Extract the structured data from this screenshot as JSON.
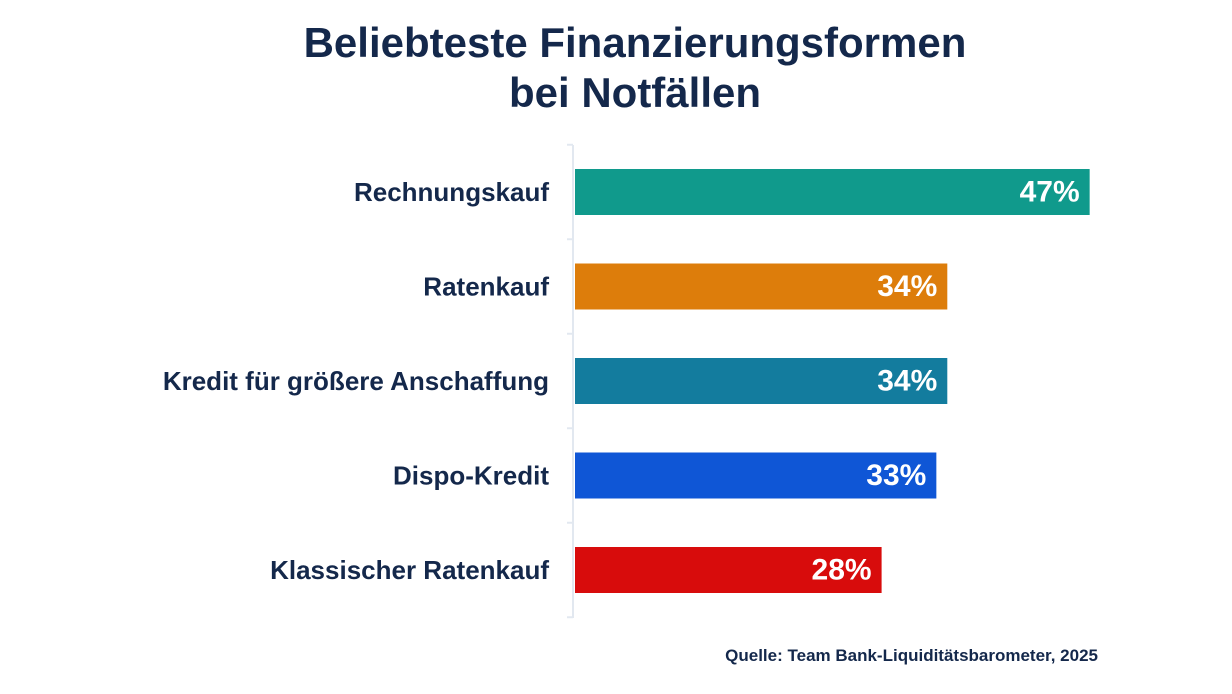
{
  "title": {
    "line1": "Beliebteste Finanzierungsformen",
    "line2": "bei Notfällen"
  },
  "source": "Quelle: Team Bank-Liquiditätsbarometer, 2025",
  "chart_data": {
    "type": "bar",
    "orientation": "horizontal",
    "title": "Beliebteste Finanzierungsformen bei Notfällen",
    "unit": "%",
    "categories": [
      "Rechnungskauf",
      "Ratenkauf",
      "Kredit für größere Anschaffung",
      "Dispo-Kredit",
      "Klassischer Ratenkauf"
    ],
    "values": [
      47,
      34,
      34,
      33,
      28
    ],
    "value_labels": [
      "47%",
      "34%",
      "34%",
      "33%",
      "28%"
    ],
    "colors": [
      "#109a8c",
      "#dd7d0b",
      "#137c9e",
      "#0f56d6",
      "#d80c0c"
    ],
    "xlim": [
      0,
      100
    ],
    "grid": false,
    "legend": "none"
  },
  "colors": {
    "text": "#14284b",
    "axis": "#e2e8f0"
  }
}
